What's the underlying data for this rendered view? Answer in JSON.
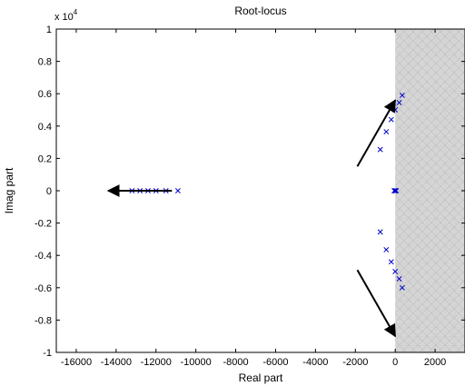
{
  "chart_data": {
    "type": "scatter",
    "title": "Root-locus",
    "xlabel": "Real part",
    "ylabel": "Imag part",
    "y_exponent_label": "x 10",
    "y_exponent_power": "4",
    "xlim": [
      -17000,
      3500
    ],
    "ylim": [
      -1,
      1
    ],
    "y_scale_factor": 10000,
    "grid": false,
    "x_ticks": [
      -16000,
      -14000,
      -12000,
      -10000,
      -8000,
      -6000,
      -4000,
      -2000,
      0,
      2000
    ],
    "x_tick_labels": [
      "-16000",
      "-14000",
      "-12000",
      "-10000",
      "-8000",
      "-6000",
      "-4000",
      "-2000",
      "0",
      "2000"
    ],
    "y_ticks": [
      1,
      0.8,
      0.6,
      0.4,
      0.2,
      0,
      -0.2,
      -0.4,
      -0.6,
      -0.8,
      -1
    ],
    "y_tick_labels": [
      "1",
      "0.8",
      "0.6",
      "0.4",
      "0.2",
      "0",
      "-0.2",
      "-0.4",
      "-0.6",
      "-0.8",
      "-1"
    ],
    "unstable_region": {
      "x_from": 0,
      "x_to": 3500
    },
    "series": [
      {
        "marker": "x",
        "color": "#0000cc",
        "points": [
          [
            -13200,
            0
          ],
          [
            -12800,
            0
          ],
          [
            -12400,
            0
          ],
          [
            -12000,
            0
          ],
          [
            -11500,
            0
          ],
          [
            -10900,
            0
          ],
          [
            -50,
            0
          ],
          [
            50,
            0
          ],
          [
            0,
            0
          ],
          [
            -750,
            0.255
          ],
          [
            -450,
            0.365
          ],
          [
            -200,
            0.44
          ],
          [
            0,
            0.5
          ],
          [
            200,
            0.545
          ],
          [
            350,
            0.59
          ],
          [
            -750,
            -0.255
          ],
          [
            -450,
            -0.365
          ],
          [
            -200,
            -0.44
          ],
          [
            0,
            -0.5
          ],
          [
            200,
            -0.545
          ],
          [
            350,
            -0.6
          ]
        ]
      }
    ],
    "arrows": [
      {
        "from": [
          -11200,
          0
        ],
        "to": [
          -14400,
          0
        ]
      },
      {
        "from": [
          -1900,
          0.15
        ],
        "to": [
          0,
          0.56
        ]
      },
      {
        "from": [
          -1900,
          -0.49
        ],
        "to": [
          0,
          -0.9
        ]
      }
    ],
    "colors": {
      "region_fill": "#d6d6d6",
      "region_grid": "#bdbdbd",
      "marker": "#0000cc",
      "arrow": "#000000"
    }
  }
}
